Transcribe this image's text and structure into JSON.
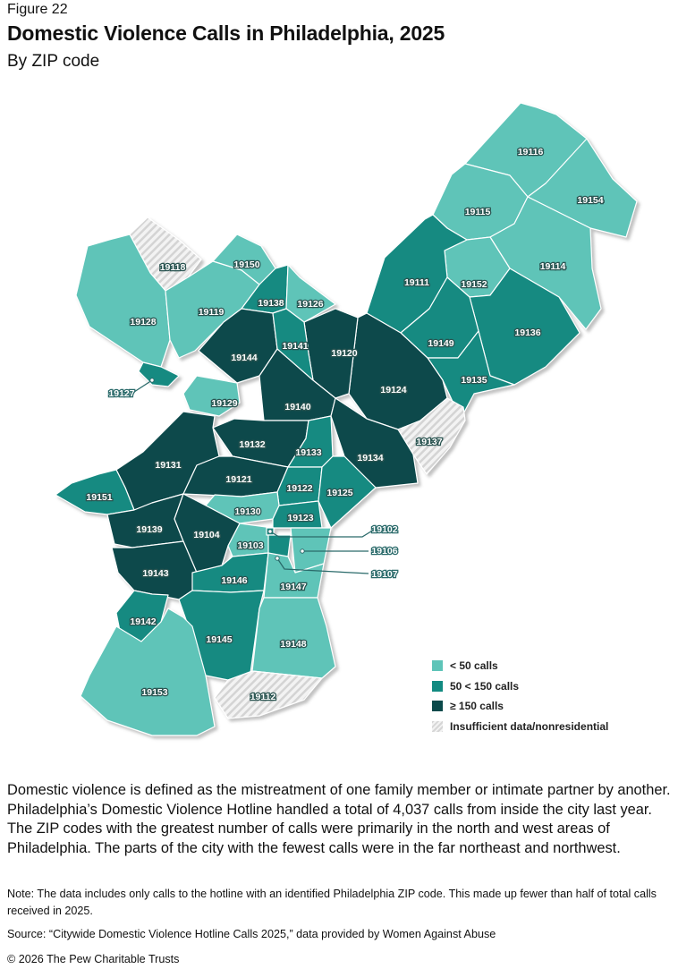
{
  "figure_label": "Figure 22",
  "title": "Domestic Violence Calls in Philadelphia, 2025",
  "subtitle": "By ZIP code",
  "colors": {
    "low": "#5ec4b8",
    "mid": "#128a81",
    "high": "#0b4a4b",
    "insufficient": "hatched light gray"
  },
  "legend": [
    {
      "label": "< 50 calls",
      "category": "low"
    },
    {
      "label": "50 < 150 calls",
      "category": "mid"
    },
    {
      "label": "≥ 150 calls",
      "category": "high"
    },
    {
      "label": "Insufficient data/nonresidential",
      "category": "insufficient"
    }
  ],
  "zip_codes": [
    {
      "zip": "19116",
      "category": "low"
    },
    {
      "zip": "19154",
      "category": "low"
    },
    {
      "zip": "19115",
      "category": "low"
    },
    {
      "zip": "19114",
      "category": "low"
    },
    {
      "zip": "19152",
      "category": "low"
    },
    {
      "zip": "19111",
      "category": "mid"
    },
    {
      "zip": "19136",
      "category": "mid"
    },
    {
      "zip": "19149",
      "category": "mid"
    },
    {
      "zip": "19135",
      "category": "mid"
    },
    {
      "zip": "19124",
      "category": "high"
    },
    {
      "zip": "19120",
      "category": "high"
    },
    {
      "zip": "19137",
      "category": "insufficient"
    },
    {
      "zip": "19118",
      "category": "insufficient"
    },
    {
      "zip": "19150",
      "category": "low"
    },
    {
      "zip": "19128",
      "category": "low"
    },
    {
      "zip": "19119",
      "category": "low"
    },
    {
      "zip": "19138",
      "category": "mid"
    },
    {
      "zip": "19126",
      "category": "low"
    },
    {
      "zip": "19127",
      "category": "mid"
    },
    {
      "zip": "19144",
      "category": "high"
    },
    {
      "zip": "19141",
      "category": "mid"
    },
    {
      "zip": "19129",
      "category": "low"
    },
    {
      "zip": "19140",
      "category": "high"
    },
    {
      "zip": "19132",
      "category": "high"
    },
    {
      "zip": "19133",
      "category": "mid"
    },
    {
      "zip": "19134",
      "category": "high"
    },
    {
      "zip": "19131",
      "category": "high"
    },
    {
      "zip": "19121",
      "category": "high"
    },
    {
      "zip": "19122",
      "category": "mid"
    },
    {
      "zip": "19125",
      "category": "mid"
    },
    {
      "zip": "19151",
      "category": "mid"
    },
    {
      "zip": "19130",
      "category": "low"
    },
    {
      "zip": "19123",
      "category": "mid"
    },
    {
      "zip": "19139",
      "category": "high"
    },
    {
      "zip": "19104",
      "category": "high"
    },
    {
      "zip": "19103",
      "category": "low"
    },
    {
      "zip": "19102",
      "category": "mid"
    },
    {
      "zip": "19106",
      "category": "low"
    },
    {
      "zip": "19107",
      "category": "mid"
    },
    {
      "zip": "19143",
      "category": "high"
    },
    {
      "zip": "19146",
      "category": "mid"
    },
    {
      "zip": "19147",
      "category": "low"
    },
    {
      "zip": "19142",
      "category": "mid"
    },
    {
      "zip": "19145",
      "category": "mid"
    },
    {
      "zip": "19148",
      "category": "low"
    },
    {
      "zip": "19153",
      "category": "low"
    },
    {
      "zip": "19112",
      "category": "insufficient"
    }
  ],
  "description": "Domestic violence is defined as the mistreatment of one family member or intimate partner by another. Philadelphia’s Domestic Violence Hotline handled a total of 4,037 calls from inside the city last year. The ZIP codes with the greatest number of calls were primarily in the north and west areas of Philadelphia. The parts of the city with the fewest calls were in the far northeast and northwest.",
  "note": "Note: The data includes only calls to the hotline with an identified Philadelphia ZIP code. This made up fewer than half of total calls received in 2025.",
  "source": "Source: “Citywide Domestic Violence Hotline Calls 2025,” data provided by Women Against Abuse",
  "copyright": "© 2026 The Pew Charitable Trusts"
}
